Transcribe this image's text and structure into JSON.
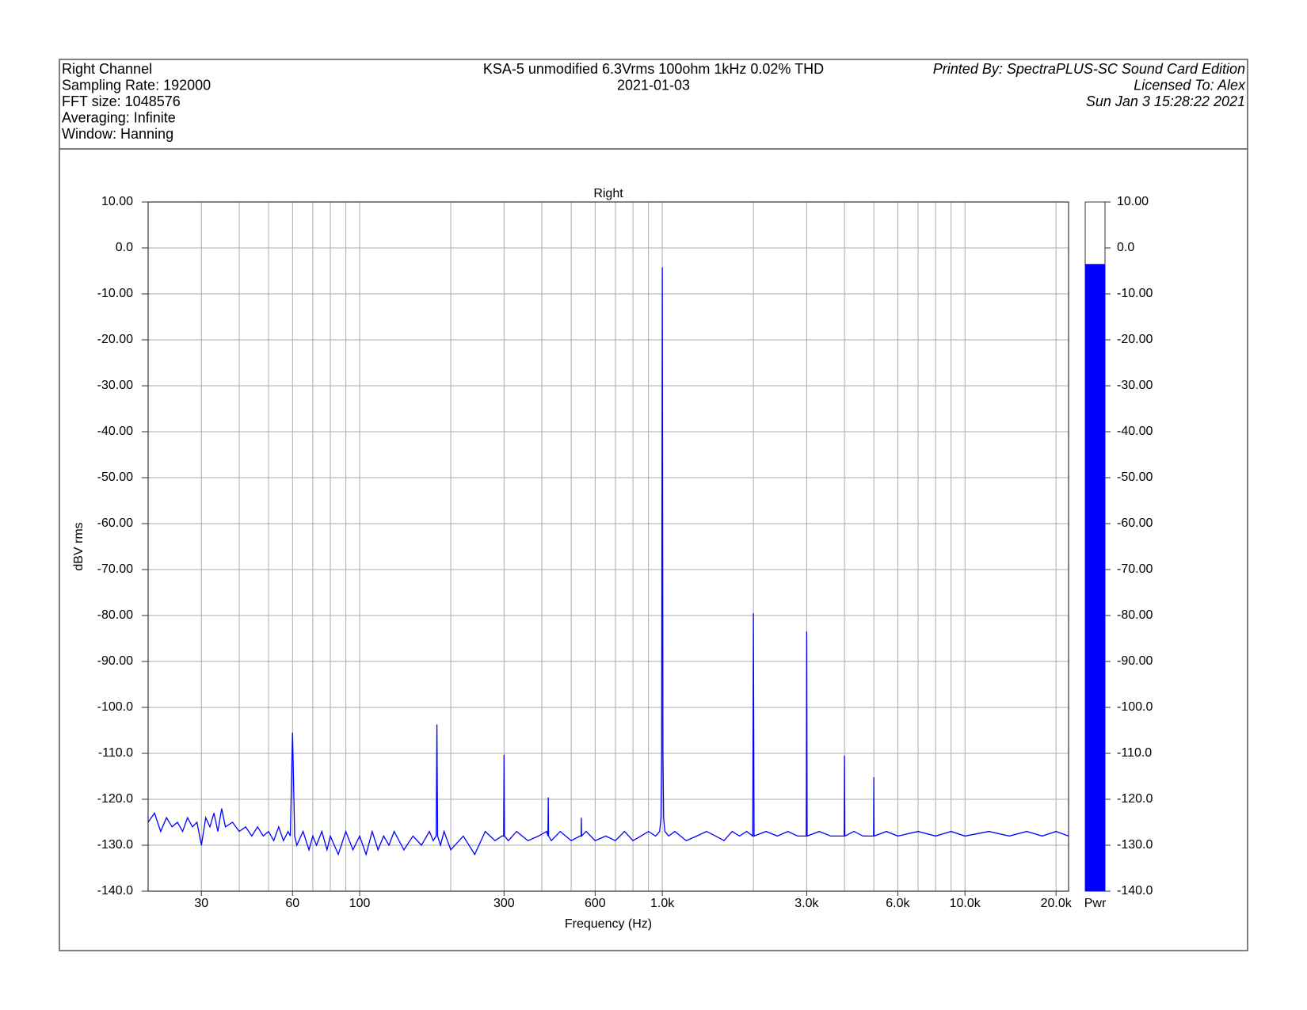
{
  "header": {
    "left": [
      "Right Channel",
      "Sampling Rate: 192000",
      "FFT size: 1048576",
      "Averaging: Infinite",
      "Window: Hanning"
    ],
    "center": [
      "KSA-5 unmodified 6.3Vrms 100ohm 1kHz 0.02% THD",
      "2021-01-03"
    ],
    "right": [
      "Printed By: SpectraPLUS-SC Sound Card Edition",
      "Licensed To: Alex",
      "Sun Jan  3 15:28:22 2021"
    ]
  },
  "chart_data": {
    "type": "line",
    "title": "Right",
    "xlabel": "Frequency (Hz)",
    "ylabel": "dBV rms",
    "xscale": "log",
    "xlim": [
      20,
      22000
    ],
    "ylim": [
      -140,
      10
    ],
    "grid": true,
    "color": "#0000ff",
    "xticks": [
      30,
      60,
      100,
      300,
      600,
      {
        "value": 1000,
        "label": "1.0k"
      },
      {
        "value": 3000,
        "label": "3.0k"
      },
      {
        "value": 6000,
        "label": "6.0k"
      },
      {
        "value": 10000,
        "label": "10.0k"
      },
      {
        "value": 20000,
        "label": "20.0k"
      }
    ],
    "xgrid": [
      30,
      40,
      50,
      60,
      70,
      80,
      90,
      100,
      200,
      300,
      400,
      500,
      600,
      700,
      800,
      900,
      1000,
      2000,
      3000,
      4000,
      5000,
      6000,
      7000,
      8000,
      9000,
      10000,
      20000
    ],
    "yticks": [
      {
        "value": 10,
        "label": "10.00"
      },
      {
        "value": 0,
        "label": "0.0"
      },
      {
        "value": -10,
        "label": "-10.00"
      },
      {
        "value": -20,
        "label": "-20.00"
      },
      {
        "value": -30,
        "label": "-30.00"
      },
      {
        "value": -40,
        "label": "-40.00"
      },
      {
        "value": -50,
        "label": "-50.00"
      },
      {
        "value": -60,
        "label": "-60.00"
      },
      {
        "value": -70,
        "label": "-70.00"
      },
      {
        "value": -80,
        "label": "-80.00"
      },
      {
        "value": -90,
        "label": "-90.00"
      },
      {
        "value": -100,
        "label": "-100.0"
      },
      {
        "value": -110,
        "label": "-110.0"
      },
      {
        "value": -120,
        "label": "-120.0"
      },
      {
        "value": -130,
        "label": "-130.0"
      },
      {
        "value": -140,
        "label": "-140.0"
      }
    ],
    "x": [
      20,
      21,
      22,
      23,
      24,
      25,
      26,
      27,
      28,
      29,
      30,
      31,
      32,
      33,
      34,
      35,
      36,
      38,
      40,
      42,
      44,
      46,
      48,
      50,
      52,
      54,
      56,
      58,
      59,
      60,
      61,
      62,
      65,
      68,
      70,
      72,
      75,
      78,
      80,
      85,
      90,
      95,
      100,
      105,
      110,
      115,
      120,
      125,
      130,
      140,
      150,
      160,
      170,
      175,
      179,
      180,
      181,
      185,
      190,
      200,
      220,
      240,
      260,
      280,
      295,
      299,
      300,
      301,
      310,
      330,
      360,
      390,
      415,
      419,
      420,
      421,
      430,
      460,
      500,
      535,
      539,
      540,
      541,
      560,
      600,
      650,
      700,
      750,
      800,
      850,
      900,
      950,
      980,
      990,
      995,
      1000,
      1005,
      1010,
      1020,
      1050,
      1100,
      1200,
      1300,
      1400,
      1500,
      1600,
      1700,
      1800,
      1900,
      1990,
      2000,
      2010,
      2200,
      2400,
      2600,
      2800,
      2990,
      3000,
      3010,
      3300,
      3600,
      3990,
      4000,
      4010,
      4300,
      4600,
      4990,
      5000,
      5010,
      5500,
      6000,
      7000,
      8000,
      9000,
      10000,
      12000,
      14000,
      16000,
      18000,
      20000,
      22000
    ],
    "values": [
      -125,
      -123,
      -127,
      -124,
      -126,
      -125,
      -127,
      -124,
      -126,
      -125,
      -130,
      -124,
      -126,
      -123,
      -127,
      -122,
      -126,
      -125,
      -127,
      -126,
      -128,
      -126,
      -128,
      -127,
      -129,
      -126,
      -129,
      -127,
      -128,
      -105.5,
      -128,
      -130,
      -127,
      -131,
      -128,
      -130,
      -127,
      -131,
      -128,
      -132,
      -127,
      -131,
      -128,
      -132,
      -127,
      -131,
      -128,
      -130,
      -127,
      -131,
      -128,
      -130,
      -127,
      -129,
      -128,
      -103.7,
      -128,
      -130,
      -127,
      -131,
      -128,
      -132,
      -127,
      -129,
      -128,
      -128,
      -110.3,
      -128,
      -129,
      -127,
      -129,
      -128,
      -127,
      -128,
      -119.6,
      -128,
      -129,
      -127,
      -129,
      -128,
      -128,
      -124,
      -128,
      -127,
      -129,
      -128,
      -129,
      -127,
      -129,
      -128,
      -127,
      -128,
      -127,
      -124,
      -110,
      -4.2,
      -110,
      -124,
      -127,
      -128,
      -127,
      -129,
      -128,
      -127,
      -128,
      -129,
      -127,
      -128,
      -127,
      -128,
      -79.5,
      -128,
      -127,
      -128,
      -127,
      -128,
      -128,
      -83.5,
      -128,
      -127,
      -128,
      -128,
      -110.5,
      -128,
      -127,
      -128,
      -128,
      -115.2,
      -128,
      -127,
      -128,
      -127,
      -128,
      -127,
      -128,
      -127,
      -128,
      -127,
      -128,
      -127,
      -128
    ],
    "meter": {
      "label": "Pwr",
      "value": -3.5,
      "color": "#0000ff"
    }
  }
}
